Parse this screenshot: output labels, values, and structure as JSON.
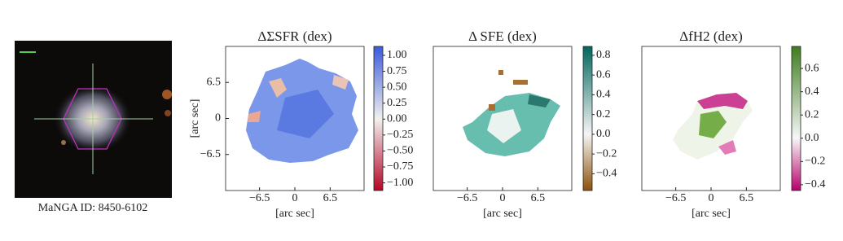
{
  "caption": "MaNGA ID: 8450-6102",
  "chart_data": [
    {
      "type": "heatmap",
      "title": "ΔΣSFR (dex)",
      "xlabel": "[arc sec]",
      "ylabel": "[arc sec]",
      "xlim": [
        -12.75,
        12.75
      ],
      "ylim": [
        -13,
        13
      ],
      "xticks": [
        {
          "value": -6.5,
          "label": "−6.5"
        },
        0,
        6.5
      ],
      "yticks": [
        6.5,
        0,
        {
          "value": -6.5,
          "label": "−6.5"
        }
      ],
      "colorbar": {
        "lim": [
          -1.12,
          1.14
        ],
        "center": 0,
        "low": "#b40426",
        "mid": "#f2f0ee",
        "high": "#3b5bdb",
        "ticks": [
          {
            "value": 1,
            "label": "1.00"
          },
          {
            "value": 0.75,
            "label": "0.75"
          },
          {
            "value": 0.5,
            "label": "0.50"
          },
          {
            "value": 0.25,
            "label": "0.25"
          },
          {
            "value": 0,
            "label": "0.00"
          },
          {
            "value": -0.25,
            "label": "−0.25"
          },
          {
            "value": -0.5,
            "label": "−0.50"
          },
          {
            "value": -0.75,
            "label": "−0.75"
          },
          {
            "value": -1,
            "label": "−1.00"
          }
        ]
      }
    },
    {
      "type": "heatmap",
      "title": "Δ SFE (dex)",
      "xlabel": "[arc sec]",
      "xlim": [
        -12.75,
        12.75
      ],
      "ylim": [
        -13,
        13
      ],
      "xticks": [
        {
          "value": -6.5,
          "label": "−6.5"
        },
        0,
        6.5
      ],
      "colorbar": {
        "lim": [
          -0.57,
          0.89
        ],
        "center": 0,
        "low": "#8c510a",
        "mid": "#f5f5f5",
        "high": "#01665e",
        "ticks": [
          0.8,
          0.6,
          0.4,
          0.2,
          {
            "value": 0,
            "label": "0.0"
          },
          {
            "value": -0.2,
            "label": "−0.2"
          },
          {
            "value": -0.4,
            "label": "−0.4"
          }
        ]
      }
    },
    {
      "type": "heatmap",
      "title": "ΔfH2 (dex)",
      "xlabel": "[arc sec]",
      "xlim": [
        -12.75,
        12.75
      ],
      "ylim": [
        -13,
        13
      ],
      "xticks": [
        {
          "value": -6.5,
          "label": "−6.5"
        },
        0,
        6.5
      ],
      "colorbar": {
        "lim": [
          -0.45,
          0.79
        ],
        "center": 0,
        "low": "#b8006b",
        "mid": "#f7f7f7",
        "high": "#3d7d1e",
        "ticks": [
          0.6,
          0.4,
          0.2,
          {
            "value": 0,
            "label": "0.0"
          },
          {
            "value": -0.2,
            "label": "−0.2"
          },
          {
            "value": -0.4,
            "label": "−0.4"
          }
        ]
      }
    }
  ]
}
